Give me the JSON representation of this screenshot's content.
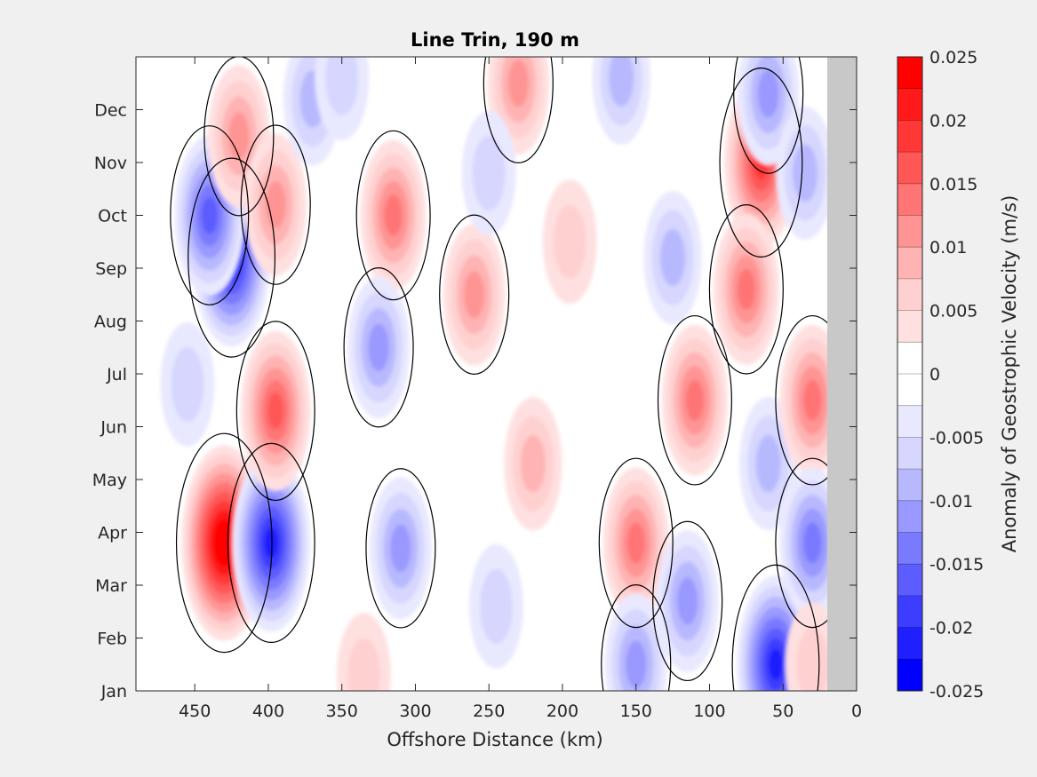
{
  "chart_data": {
    "type": "heatmap",
    "title": "Line Trin, 190 m",
    "xlabel": "Offshore Distance (km)",
    "ylabel": "",
    "xlim": [
      490,
      0
    ],
    "x_reversed": true,
    "x_ticks": [
      450,
      400,
      350,
      300,
      250,
      200,
      150,
      100,
      50,
      0
    ],
    "y_ticks": [
      {
        "label": "Jan",
        "month": 1
      },
      {
        "label": "Feb",
        "month": 2
      },
      {
        "label": "Mar",
        "month": 3
      },
      {
        "label": "Apr",
        "month": 4
      },
      {
        "label": "May",
        "month": 5
      },
      {
        "label": "Jun",
        "month": 6
      },
      {
        "label": "Jul",
        "month": 7
      },
      {
        "label": "Aug",
        "month": 8
      },
      {
        "label": "Sep",
        "month": 9
      },
      {
        "label": "Oct",
        "month": 10
      },
      {
        "label": "Nov",
        "month": 11
      },
      {
        "label": "Dec",
        "month": 12
      }
    ],
    "ylim": [
      1,
      13
    ],
    "zero_contour": true,
    "no_data_region": {
      "x_from": 20,
      "x_to": 0,
      "color": "#c8c8c8"
    },
    "colorbar": {
      "label": "Anomaly of Geostrophic Velocity (m/s)",
      "range": [
        -0.025,
        0.025
      ],
      "ticks": [
        "0.025",
        "0.02",
        "0.015",
        "0.01",
        "0.005",
        "0",
        "-0.005",
        "-0.01",
        "-0.015",
        "-0.02",
        "-0.025"
      ],
      "colors": [
        "#0000ff",
        "#1f1fff",
        "#3d3dff",
        "#5c5cff",
        "#7a7aff",
        "#9999ff",
        "#b8b8ff",
        "#d6d6ff",
        "#e8e8ff",
        "#ffffff",
        "#ffffff",
        "#ffe0e0",
        "#ffd0d0",
        "#ffb3b3",
        "#ff9494",
        "#ff7575",
        "#ff5656",
        "#ff3737",
        "#ff1919",
        "#ff0000"
      ]
    },
    "anomaly_features": [
      {
        "km": 430,
        "month": 3.8,
        "value": 0.024
      },
      {
        "km": 398,
        "month": 3.8,
        "value": -0.021
      },
      {
        "km": 425,
        "month": 9.2,
        "value": -0.021
      },
      {
        "km": 440,
        "month": 10.0,
        "value": -0.016
      },
      {
        "km": 395,
        "month": 6.3,
        "value": 0.015
      },
      {
        "km": 420,
        "month": 11.5,
        "value": 0.01
      },
      {
        "km": 395,
        "month": 10.2,
        "value": 0.01
      },
      {
        "km": 455,
        "month": 6.8,
        "value": -0.006
      },
      {
        "km": 370,
        "month": 12.2,
        "value": -0.008
      },
      {
        "km": 350,
        "month": 12.6,
        "value": -0.006
      },
      {
        "km": 315,
        "month": 10.0,
        "value": 0.012
      },
      {
        "km": 325,
        "month": 7.5,
        "value": -0.009
      },
      {
        "km": 310,
        "month": 3.7,
        "value": -0.01
      },
      {
        "km": 335,
        "month": 1.3,
        "value": 0.006
      },
      {
        "km": 260,
        "month": 8.5,
        "value": 0.009
      },
      {
        "km": 230,
        "month": 12.5,
        "value": 0.009
      },
      {
        "km": 250,
        "month": 10.8,
        "value": -0.005
      },
      {
        "km": 220,
        "month": 5.3,
        "value": 0.007
      },
      {
        "km": 245,
        "month": 2.6,
        "value": -0.006
      },
      {
        "km": 195,
        "month": 9.5,
        "value": 0.005
      },
      {
        "km": 150,
        "month": 3.8,
        "value": 0.013
      },
      {
        "km": 150,
        "month": 1.5,
        "value": -0.01
      },
      {
        "km": 160,
        "month": 12.6,
        "value": -0.007
      },
      {
        "km": 110,
        "month": 6.5,
        "value": 0.013
      },
      {
        "km": 115,
        "month": 2.7,
        "value": -0.01
      },
      {
        "km": 125,
        "month": 9.2,
        "value": -0.007
      },
      {
        "km": 65,
        "month": 11.0,
        "value": 0.017
      },
      {
        "km": 75,
        "month": 8.6,
        "value": 0.013
      },
      {
        "km": 55,
        "month": 1.5,
        "value": -0.02
      },
      {
        "km": 60,
        "month": 12.3,
        "value": -0.01
      },
      {
        "km": 60,
        "month": 5.3,
        "value": -0.008
      },
      {
        "km": 30,
        "month": 6.5,
        "value": 0.012
      },
      {
        "km": 30,
        "month": 3.8,
        "value": -0.013
      },
      {
        "km": 30,
        "month": 1.5,
        "value": 0.006
      },
      {
        "km": 35,
        "month": 10.8,
        "value": -0.007
      }
    ]
  }
}
